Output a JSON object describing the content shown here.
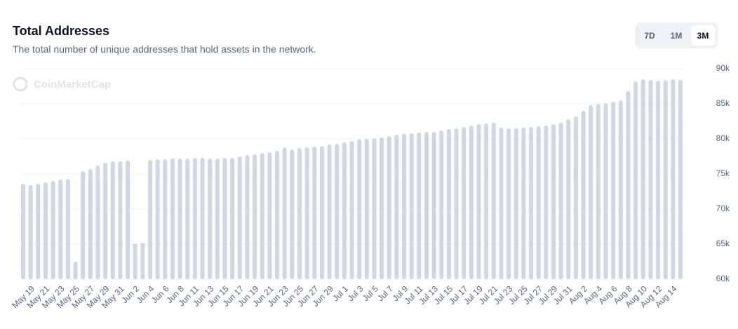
{
  "header": {
    "title": "Total Addresses",
    "subtitle": "The total number of unique addresses that hold assets in the network.",
    "tabs": [
      "7D",
      "1M",
      "3M"
    ],
    "selected_tab": 2
  },
  "chart_data": {
    "type": "bar",
    "watermark": "CoinMarketCap",
    "color": "#cfd6e4",
    "grid": true,
    "categories": [
      null,
      "May 19",
      null,
      "May 21",
      null,
      "May 23",
      null,
      "May 25",
      null,
      "May 27",
      null,
      "May 29",
      null,
      "May 31",
      null,
      "Jun 2",
      null,
      "Jun 4",
      null,
      "Jun 6",
      null,
      "Jun 8",
      null,
      "Jun 11",
      null,
      "Jun 13",
      null,
      "Jun 15",
      null,
      "Jun 17",
      null,
      "Jun 19",
      null,
      "Jun 21",
      null,
      "Jun 23",
      null,
      "Jun 25",
      null,
      "Jun 27",
      null,
      "Jun 29",
      null,
      "Jul 1",
      null,
      "Jul 3",
      null,
      "Jul 5",
      null,
      "Jul 7",
      null,
      "Jul 9",
      null,
      "Jul 11",
      null,
      "Jul 13",
      null,
      "Jul 15",
      null,
      "Jul 17",
      null,
      "Jul 19",
      null,
      "Jul 21",
      null,
      "Jul 23",
      null,
      "Jul 25",
      null,
      "Jul 27",
      null,
      "Jul 29",
      null,
      "Jul 31",
      null,
      "Aug 2",
      null,
      "Aug 4",
      null,
      "Aug 6",
      null,
      "Aug 8",
      null,
      "Aug 10",
      null,
      "Aug 12",
      null,
      "Aug 14",
      null
    ],
    "values": [
      73600,
      73400,
      73600,
      73800,
      74000,
      74200,
      74300,
      62500,
      75400,
      75700,
      76200,
      76600,
      76800,
      76800,
      76900,
      65100,
      65200,
      77000,
      77100,
      77100,
      77200,
      77200,
      77200,
      77300,
      77300,
      77200,
      77200,
      77300,
      77300,
      77500,
      77700,
      77800,
      78000,
      78100,
      78300,
      78800,
      78500,
      78700,
      78800,
      78900,
      79000,
      79200,
      79300,
      79500,
      79700,
      79900,
      80000,
      80100,
      80200,
      80400,
      80600,
      80700,
      80800,
      80900,
      81000,
      81000,
      81200,
      81400,
      81500,
      81700,
      81900,
      82100,
      82200,
      82300,
      81600,
      81500,
      81500,
      81600,
      81700,
      81800,
      81900,
      82100,
      82300,
      82800,
      83200,
      84000,
      84800,
      85000,
      85100,
      85300,
      85500,
      86800,
      88200,
      88500,
      88400,
      88300,
      88400,
      88500,
      88400
    ],
    "ylim": [
      60000,
      90000
    ],
    "yticks": [
      {
        "value": 60000,
        "label": "60k"
      },
      {
        "value": 65000,
        "label": "65k"
      },
      {
        "value": 70000,
        "label": "70k"
      },
      {
        "value": 75000,
        "label": "75k"
      },
      {
        "value": 80000,
        "label": "80k"
      },
      {
        "value": 85000,
        "label": "85k"
      },
      {
        "value": 90000,
        "label": "90k"
      }
    ]
  }
}
